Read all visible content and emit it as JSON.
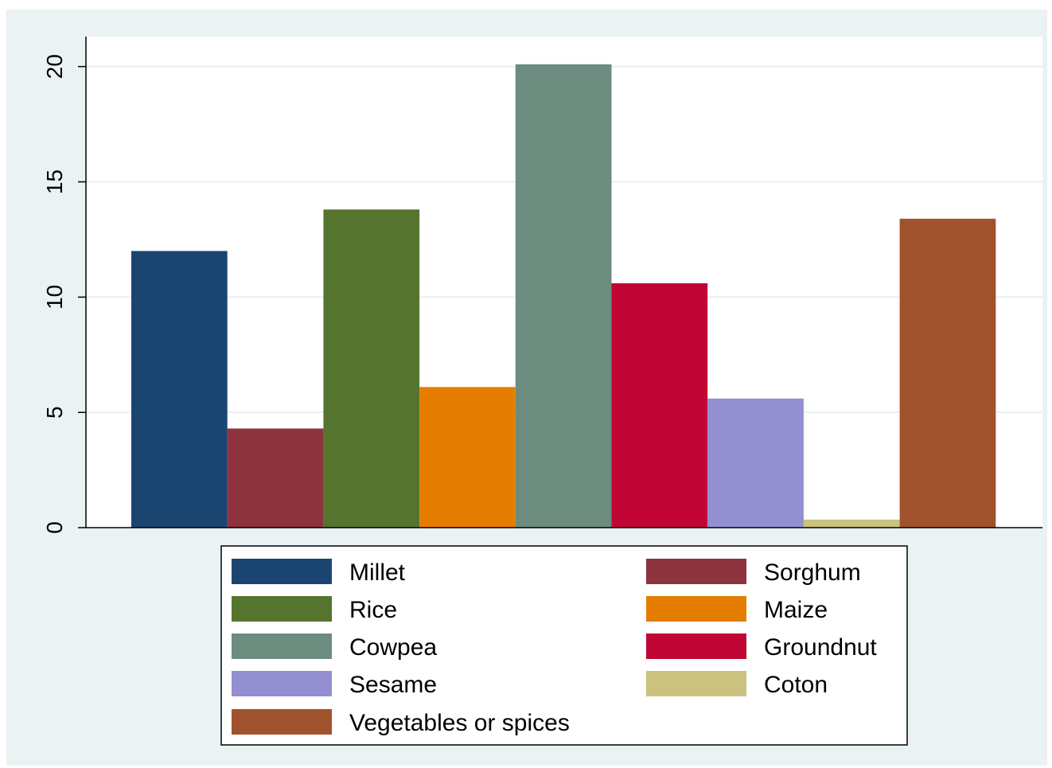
{
  "chart_data": {
    "type": "bar",
    "title": "",
    "xlabel": "",
    "ylabel": "",
    "ylim": [
      0,
      21.3
    ],
    "yticks": [
      0,
      5,
      10,
      15,
      20
    ],
    "grid": true,
    "legend_position": "bottom",
    "series": [
      {
        "name": "Millet",
        "value": 12.0,
        "color": "#1a4570"
      },
      {
        "name": "Sorghum",
        "value": 4.3,
        "color": "#8d333d"
      },
      {
        "name": "Rice",
        "value": 13.8,
        "color": "#55742e"
      },
      {
        "name": "Maize",
        "value": 6.1,
        "color": "#e47d00"
      },
      {
        "name": "Cowpea",
        "value": 20.1,
        "color": "#6b8c7f"
      },
      {
        "name": "Groundnut",
        "value": 10.6,
        "color": "#c10534"
      },
      {
        "name": "Sesame",
        "value": 5.6,
        "color": "#938fd1"
      },
      {
        "name": "Coton",
        "value": 0.35,
        "color": "#cac27e"
      },
      {
        "name": "Vegetables or spices",
        "value": 13.4,
        "color": "#a0522d"
      }
    ]
  }
}
